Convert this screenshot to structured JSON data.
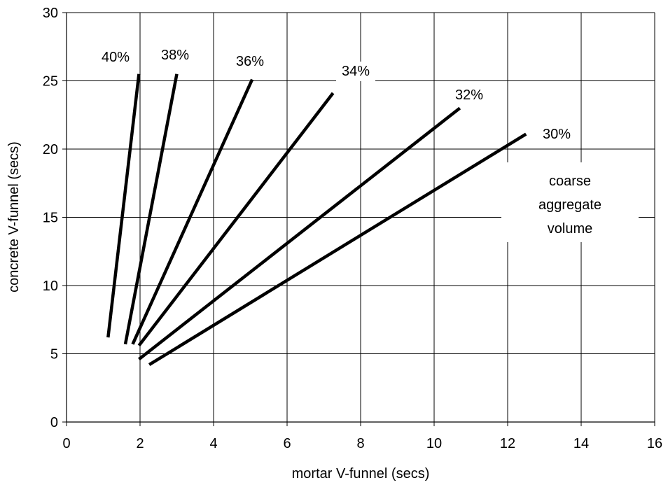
{
  "chart_data": {
    "type": "line",
    "title": "",
    "xlabel": "mortar V-funnel (secs)",
    "ylabel": "concrete V-funnel (secs)",
    "xlim": [
      0,
      16
    ],
    "ylim": [
      0,
      30
    ],
    "xticks": [
      0,
      2,
      4,
      6,
      8,
      10,
      12,
      14,
      16
    ],
    "yticks": [
      0,
      5,
      10,
      15,
      20,
      25,
      30
    ],
    "grid": true,
    "legend": "none",
    "line_color": "#000000",
    "series": [
      {
        "name": "40%",
        "x": [
          1.13,
          1.97
        ],
        "y": [
          6.2,
          25.5
        ]
      },
      {
        "name": "38%",
        "x": [
          1.6,
          3.0
        ],
        "y": [
          5.7,
          25.5
        ]
      },
      {
        "name": "36%",
        "x": [
          1.8,
          5.05
        ],
        "y": [
          5.7,
          25.1
        ]
      },
      {
        "name": "34%",
        "x": [
          1.97,
          7.25
        ],
        "y": [
          5.6,
          24.1
        ]
      },
      {
        "name": "32%",
        "x": [
          1.97,
          10.7
        ],
        "y": [
          4.6,
          23.0
        ]
      },
      {
        "name": "30%",
        "x": [
          2.25,
          12.5
        ],
        "y": [
          4.2,
          21.1
        ]
      }
    ],
    "annotation": [
      "coarse",
      "aggregate",
      "volume"
    ]
  }
}
